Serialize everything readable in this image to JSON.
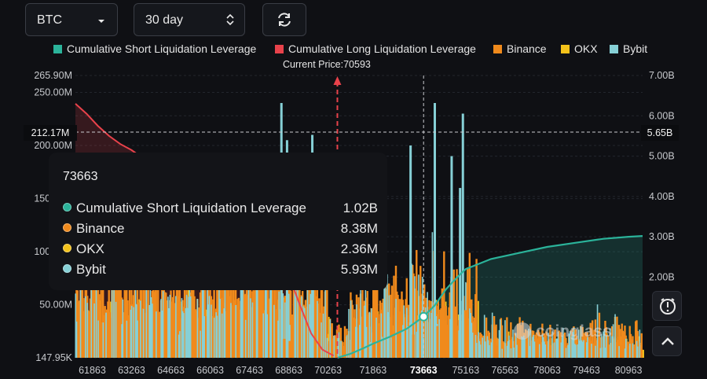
{
  "controls": {
    "asset": "BTC",
    "period": "30 day"
  },
  "legend": [
    {
      "label": "Cumulative Short Liquidation Leverage",
      "color": "#2bb39a"
    },
    {
      "label": "Cumulative Long Liquidation Leverage",
      "color": "#e8424b"
    },
    {
      "label": "Binance",
      "color": "#f08a1c"
    },
    {
      "label": "OKX",
      "color": "#f4c21a"
    },
    {
      "label": "Bybit",
      "color": "#86d0d6"
    }
  ],
  "current_price_label": "Current Price:70593",
  "crosshair": {
    "left_value": "212.17M",
    "right_value": "5.65B"
  },
  "tooltip": {
    "title": "73663",
    "rows": [
      {
        "label": "Cumulative Short Liquidation Leverage",
        "value": "1.02B",
        "color": "#2bb39a"
      },
      {
        "label": "Binance",
        "value": "8.38M",
        "color": "#f08a1c"
      },
      {
        "label": "OKX",
        "value": "2.36M",
        "color": "#f4c21a"
      },
      {
        "label": "Bybit",
        "value": "5.93M",
        "color": "#86d0d6"
      }
    ]
  },
  "watermark": "coinglass",
  "chart_data": {
    "type": "bar",
    "x_axis": {
      "ticks": [
        "61863",
        "63263",
        "64663",
        "66063",
        "67463",
        "68863",
        "70263",
        "71863",
        "73663",
        "75163",
        "76563",
        "78063",
        "79463",
        "80963"
      ],
      "highlight": "73663",
      "range": [
        61263,
        81463
      ]
    },
    "y_left": {
      "ticks": [
        "265.90M",
        "250.00M",
        "200.00M",
        "150.00M",
        "100.00M",
        "50.00M",
        "147.95K"
      ],
      "range_m": [
        0.14795,
        265.9
      ]
    },
    "y_right": {
      "ticks": [
        "7.00B",
        "6.00B",
        "5.00B",
        "4.00B",
        "3.00B",
        "2.00B"
      ],
      "range_b": [
        0,
        7
      ]
    },
    "current_price": 70593,
    "crosshair_price": 73663,
    "cumulative_long_b": {
      "x": [
        61263,
        61663,
        62063,
        62463,
        62863,
        63263,
        63663,
        64063,
        64663,
        65263,
        66063,
        66863,
        67463,
        68063,
        68863,
        69263,
        69663,
        70063,
        70463
      ],
      "y": [
        6.3,
        6.05,
        5.75,
        5.5,
        5.3,
        5.15,
        4.95,
        4.75,
        4.5,
        4.25,
        3.9,
        3.5,
        3.2,
        2.85,
        2.05,
        1.3,
        0.6,
        0.2,
        0.05
      ]
    },
    "cumulative_short_b": {
      "x": [
        70593,
        71063,
        71463,
        71863,
        72463,
        73063,
        73663,
        74063,
        74463,
        74863,
        75163,
        76063,
        77063,
        78063,
        79063,
        80063,
        80963,
        81463
      ],
      "y": [
        0,
        0.1,
        0.22,
        0.35,
        0.52,
        0.72,
        1.02,
        1.3,
        1.7,
        2.0,
        2.2,
        2.45,
        2.6,
        2.75,
        2.85,
        2.95,
        3.0,
        3.02
      ]
    },
    "spikes_m": [
      {
        "x": 68600,
        "okx": 10,
        "bybit": 240,
        "binance": 18
      },
      {
        "x": 68800,
        "okx": 8,
        "bybit": 205,
        "binance": 16
      },
      {
        "x": 69700,
        "okx": 10,
        "bybit": 210,
        "binance": 18
      },
      {
        "x": 73200,
        "okx": 15,
        "bybit": 200,
        "binance": 22
      },
      {
        "x": 74063,
        "okx": 20,
        "bybit": 240,
        "binance": 30
      },
      {
        "x": 74663,
        "okx": 30,
        "bybit": 190,
        "binance": 40
      },
      {
        "x": 74963,
        "okx": 25,
        "bybit": 160,
        "binance": 35
      },
      {
        "x": 75063,
        "okx": 35,
        "bybit": 230,
        "binance": 45
      }
    ],
    "tooltip_point": {
      "x": 73663,
      "cumulative_short_b": 1.02,
      "binance_m": 8.38,
      "okx_m": 2.36,
      "bybit_m": 5.93
    },
    "legend_position": "top-center",
    "grid": true
  }
}
